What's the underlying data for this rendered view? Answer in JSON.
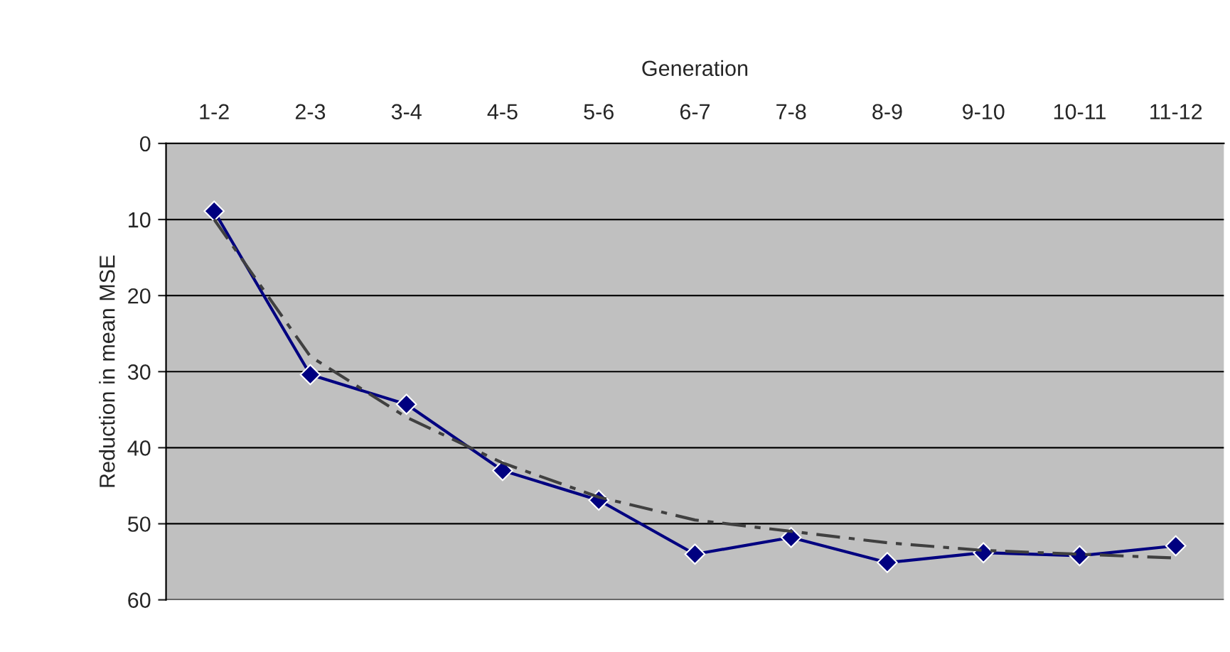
{
  "chart_data": {
    "type": "line",
    "xlabel": "Generation",
    "ylabel": "Reduction in mean MSE",
    "categories": [
      "1-2",
      "2-3",
      "3-4",
      "4-5",
      "5-6",
      "6-7",
      "7-8",
      "8-9",
      "9-10",
      "10-11",
      "11-12"
    ],
    "series": [
      {
        "color": "#000080",
        "marker": "diamond",
        "line_style": "solid",
        "values": [
          8.9,
          30.4,
          34.3,
          43.0,
          46.9,
          54.0,
          51.8,
          55.1,
          53.8,
          54.2,
          52.9
        ]
      },
      {
        "color": "#404040",
        "marker": "none",
        "line_style": "dashed",
        "values": [
          10,
          28,
          36,
          42,
          46.5,
          49.5,
          51,
          52.5,
          53.5,
          54,
          54.5
        ]
      }
    ],
    "ylim": [
      60,
      0
    ],
    "yticks": [
      0,
      10,
      20,
      30,
      40,
      50,
      60
    ],
    "grid": "y",
    "legend": false
  }
}
